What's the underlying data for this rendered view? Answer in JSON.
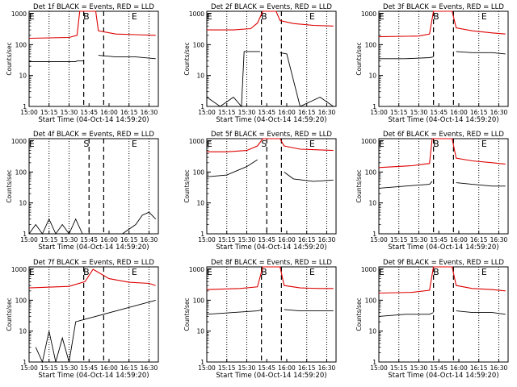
{
  "figure": {
    "xlabel": "Start Time (04-Oct-14 14:59:20)",
    "ylabel": "Counts/sec",
    "xticks": [
      "15:00",
      "15:15",
      "15:30",
      "15:45",
      "16:00",
      "16:15",
      "16:30"
    ],
    "yticks": [
      "1",
      "10",
      "100",
      "1000"
    ],
    "colors": {
      "events": "#000000",
      "lld": "#dd0000",
      "axes": "#000000"
    }
  },
  "chart_data": [
    {
      "type": "line",
      "title": "Det 1f BLACK = Events, RED = LLD",
      "markers": {
        "E1": "E",
        "B": "B",
        "E2": "E"
      },
      "xlim": [
        "15:00",
        "16:37"
      ],
      "ylim": [
        1,
        1200
      ],
      "yscale": "log",
      "series": [
        {
          "name": "BLACK = Events",
          "x": [
            "15:00",
            "15:35",
            "15:36",
            "15:41",
            "15:42",
            "15:51",
            "15:52",
            "16:05",
            "16:20",
            "16:35"
          ],
          "values": [
            28,
            28,
            30,
            30,
            null,
            null,
            45,
            40,
            40,
            35
          ]
        },
        {
          "name": "RED = LLD",
          "x": [
            "15:00",
            "15:30",
            "15:36",
            "15:38",
            "15:42",
            "15:50",
            "15:52",
            "16:05",
            "16:20",
            "16:35"
          ],
          "values": [
            160,
            170,
            200,
            1200,
            1200,
            1200,
            280,
            220,
            210,
            200
          ]
        }
      ]
    },
    {
      "type": "line",
      "title": "Det 2f BLACK = Events, RED = LLD",
      "markers": {
        "E1": "E",
        "B": "B",
        "E2": "E"
      },
      "xlim": [
        "15:00",
        "16:37"
      ],
      "ylim": [
        1,
        1200
      ],
      "yscale": "log",
      "series": [
        {
          "name": "BLACK = Events",
          "x": [
            "15:00",
            "15:10",
            "15:20",
            "15:26",
            "15:28",
            "15:35",
            "15:40",
            "15:42",
            "15:52",
            "15:55",
            "16:00",
            "16:10",
            "16:25",
            "16:35"
          ],
          "values": [
            2,
            1,
            2,
            1,
            60,
            60,
            60,
            null,
            null,
            55,
            50,
            1,
            2,
            1
          ]
        },
        {
          "name": "RED = LLD",
          "x": [
            "15:00",
            "15:20",
            "15:33",
            "15:38",
            "15:42",
            "15:52",
            "15:55",
            "16:05",
            "16:20",
            "16:35"
          ],
          "values": [
            300,
            300,
            330,
            500,
            1200,
            1200,
            600,
            480,
            420,
            400
          ]
        }
      ]
    },
    {
      "type": "line",
      "title": "Det 3f BLACK = Events, RED = LLD",
      "markers": {
        "E1": "E",
        "B": "B",
        "E2": "E"
      },
      "xlim": [
        "15:00",
        "16:37"
      ],
      "ylim": [
        1,
        1200
      ],
      "yscale": "log",
      "series": [
        {
          "name": "BLACK = Events",
          "x": [
            "15:00",
            "15:20",
            "15:38",
            "15:41",
            "15:55",
            "15:58",
            "16:10",
            "16:25",
            "16:35"
          ],
          "values": [
            35,
            35,
            38,
            40,
            null,
            60,
            55,
            55,
            50
          ]
        },
        {
          "name": "RED = LLD",
          "x": [
            "15:00",
            "15:30",
            "15:38",
            "15:41",
            "15:55",
            "15:58",
            "16:10",
            "16:25",
            "16:35"
          ],
          "values": [
            180,
            190,
            220,
            1200,
            1200,
            350,
            280,
            240,
            220
          ]
        }
      ]
    },
    {
      "type": "line",
      "title": "Det 4f BLACK = Events, RED = LLD",
      "markers": {
        "E1": "E",
        "B": "S",
        "E2": "E"
      },
      "xlim": [
        "15:00",
        "16:37"
      ],
      "ylim": [
        1,
        1200
      ],
      "yscale": "log",
      "series": [
        {
          "name": "BLACK = Events",
          "x": [
            "15:00",
            "15:05",
            "15:10",
            "15:15",
            "15:20",
            "15:25",
            "15:30",
            "15:35",
            "15:40",
            "15:50",
            "16:00",
            "16:10",
            "16:20",
            "16:25",
            "16:30",
            "16:35"
          ],
          "values": [
            1,
            2,
            1,
            3,
            1,
            2,
            1,
            3,
            1,
            null,
            null,
            1,
            2,
            4,
            5,
            3
          ]
        }
      ]
    },
    {
      "type": "line",
      "title": "Det 5f BLACK = Events, RED = LLD",
      "markers": {
        "E1": "E",
        "B": "S",
        "E2": "E"
      },
      "xlim": [
        "15:00",
        "16:37"
      ],
      "ylim": [
        1,
        1200
      ],
      "yscale": "log",
      "series": [
        {
          "name": "BLACK = Events",
          "x": [
            "15:00",
            "15:15",
            "15:30",
            "15:38",
            "15:42",
            "15:55",
            "15:58",
            "16:05",
            "16:20",
            "16:35"
          ],
          "values": [
            70,
            80,
            150,
            250,
            null,
            null,
            100,
            60,
            50,
            55
          ]
        },
        {
          "name": "RED = LLD",
          "x": [
            "15:00",
            "15:15",
            "15:30",
            "15:38",
            "15:42",
            "15:55",
            "15:58",
            "16:10",
            "16:25",
            "16:35"
          ],
          "values": [
            450,
            450,
            500,
            700,
            1200,
            1200,
            700,
            550,
            520,
            500
          ]
        }
      ]
    },
    {
      "type": "line",
      "title": "Det 6f BLACK = Events, RED = LLD",
      "markers": {
        "E1": "E",
        "B": "B",
        "E2": "E"
      },
      "xlim": [
        "15:00",
        "16:37"
      ],
      "ylim": [
        1,
        1200
      ],
      "yscale": "log",
      "series": [
        {
          "name": "BLACK = Events",
          "x": [
            "15:00",
            "15:20",
            "15:38",
            "15:40",
            "15:55",
            "15:58",
            "16:10",
            "16:25",
            "16:35"
          ],
          "values": [
            30,
            35,
            40,
            50,
            null,
            45,
            40,
            35,
            35
          ]
        },
        {
          "name": "RED = LLD",
          "x": [
            "15:00",
            "15:25",
            "15:38",
            "15:40",
            "15:55",
            "15:58",
            "16:10",
            "16:25",
            "16:35"
          ],
          "values": [
            140,
            160,
            190,
            1200,
            1200,
            280,
            230,
            200,
            180
          ]
        }
      ]
    },
    {
      "type": "line",
      "title": "Det 7f BLACK = Events, RED = LLD",
      "markers": {
        "E1": "E",
        "B": "B",
        "E2": "E"
      },
      "xlim": [
        "15:00",
        "16:37"
      ],
      "ylim": [
        1,
        1200
      ],
      "yscale": "log",
      "series": [
        {
          "name": "BLACK = Events",
          "x": [
            "15:05",
            "15:10",
            "15:15",
            "15:20",
            "15:25",
            "15:30",
            "15:35",
            "16:35"
          ],
          "values": [
            3,
            1,
            10,
            1,
            6,
            1,
            20,
            100
          ]
        },
        {
          "name": "RED = LLD",
          "x": [
            "15:00",
            "15:30",
            "15:42",
            "15:48",
            "16:00",
            "16:15",
            "16:30",
            "16:35"
          ],
          "values": [
            250,
            280,
            400,
            1000,
            500,
            380,
            350,
            300
          ]
        }
      ]
    },
    {
      "type": "line",
      "title": "Det 8f BLACK = Events, RED = LLD",
      "markers": {
        "E1": "E",
        "B": "B",
        "E2": "E"
      },
      "xlim": [
        "15:00",
        "16:37"
      ],
      "ylim": [
        1,
        1200
      ],
      "yscale": "log",
      "series": [
        {
          "name": "BLACK = Events",
          "x": [
            "15:00",
            "15:20",
            "15:38",
            "15:42",
            "15:55",
            "15:58",
            "16:10",
            "16:25",
            "16:35"
          ],
          "values": [
            35,
            40,
            45,
            50,
            null,
            50,
            45,
            45,
            45
          ]
        },
        {
          "name": "RED = LLD",
          "x": [
            "15:00",
            "15:25",
            "15:38",
            "15:42",
            "15:55",
            "15:58",
            "16:10",
            "16:25",
            "16:35"
          ],
          "values": [
            220,
            240,
            270,
            1200,
            1200,
            300,
            250,
            240,
            240
          ]
        }
      ]
    },
    {
      "type": "line",
      "title": "Det 9f BLACK = Events, RED = LLD",
      "markers": {
        "E1": "E",
        "B": "B",
        "E2": "E"
      },
      "xlim": [
        "15:00",
        "16:37"
      ],
      "ylim": [
        1,
        1200
      ],
      "yscale": "log",
      "series": [
        {
          "name": "BLACK = Events",
          "x": [
            "15:00",
            "15:20",
            "15:38",
            "15:41",
            "15:55",
            "15:58",
            "16:10",
            "16:25",
            "16:35"
          ],
          "values": [
            30,
            35,
            35,
            40,
            null,
            45,
            40,
            40,
            35
          ]
        },
        {
          "name": "RED = LLD",
          "x": [
            "15:00",
            "15:25",
            "15:38",
            "15:41",
            "15:55",
            "15:58",
            "16:10",
            "16:25",
            "16:35"
          ],
          "values": [
            170,
            180,
            210,
            1200,
            1200,
            300,
            240,
            220,
            200
          ]
        }
      ]
    }
  ]
}
